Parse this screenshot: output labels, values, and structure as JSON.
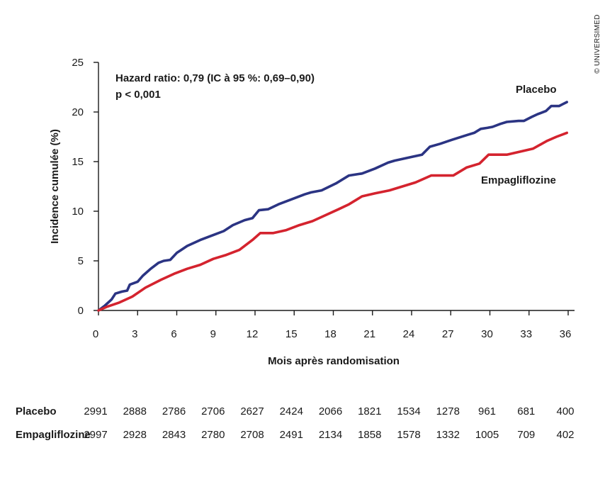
{
  "chart_data": {
    "type": "line",
    "xlabel": "Mois après randomisation",
    "ylabel": "Incidence cumulée (%)",
    "xlim": [
      0,
      36
    ],
    "ylim": [
      0,
      25
    ],
    "x_ticks": [
      0,
      3,
      6,
      9,
      12,
      15,
      18,
      21,
      24,
      27,
      30,
      33,
      36
    ],
    "y_ticks": [
      0,
      5,
      10,
      15,
      20,
      25
    ],
    "grid": false,
    "annotations": [
      "Hazard ratio: 0,79 (IC à 95 %: 0,69–0,90)",
      "p < 0,001"
    ],
    "series": [
      {
        "name": "Placebo",
        "color": "#2b3483",
        "points": [
          [
            0,
            0
          ],
          [
            0.5,
            0.5
          ],
          [
            1,
            1.1
          ],
          [
            1.3,
            1.7
          ],
          [
            1.8,
            1.9
          ],
          [
            2.2,
            2.0
          ],
          [
            2.4,
            2.6
          ],
          [
            3,
            2.9
          ],
          [
            3.4,
            3.5
          ],
          [
            4,
            4.2
          ],
          [
            4.6,
            4.8
          ],
          [
            5,
            5.0
          ],
          [
            5.5,
            5.1
          ],
          [
            6,
            5.8
          ],
          [
            6.8,
            6.5
          ],
          [
            7.8,
            7.1
          ],
          [
            8.8,
            7.6
          ],
          [
            9.6,
            8.0
          ],
          [
            10.3,
            8.6
          ],
          [
            11.2,
            9.1
          ],
          [
            11.8,
            9.3
          ],
          [
            12.3,
            10.1
          ],
          [
            13,
            10.2
          ],
          [
            13.8,
            10.7
          ],
          [
            14.8,
            11.2
          ],
          [
            15.8,
            11.7
          ],
          [
            16.3,
            11.9
          ],
          [
            17.1,
            12.1
          ],
          [
            18.2,
            12.8
          ],
          [
            19.2,
            13.6
          ],
          [
            20.2,
            13.8
          ],
          [
            21.2,
            14.3
          ],
          [
            22.2,
            14.9
          ],
          [
            22.7,
            15.1
          ],
          [
            24.1,
            15.5
          ],
          [
            24.8,
            15.7
          ],
          [
            25.4,
            16.5
          ],
          [
            26.2,
            16.8
          ],
          [
            27.1,
            17.2
          ],
          [
            28.3,
            17.7
          ],
          [
            28.8,
            17.9
          ],
          [
            29.3,
            18.3
          ],
          [
            29.8,
            18.4
          ],
          [
            30.2,
            18.5
          ],
          [
            30.8,
            18.8
          ],
          [
            31.3,
            19.0
          ],
          [
            32.2,
            19.1
          ],
          [
            32.6,
            19.1
          ],
          [
            33.2,
            19.5
          ],
          [
            33.7,
            19.8
          ],
          [
            34.3,
            20.1
          ],
          [
            34.7,
            20.6
          ],
          [
            35.3,
            20.6
          ],
          [
            35.6,
            20.8
          ],
          [
            35.9,
            21.0
          ]
        ]
      },
      {
        "name": "Empagliflozine",
        "color": "#d4232e",
        "points": [
          [
            0,
            0
          ],
          [
            0.7,
            0.4
          ],
          [
            1.6,
            0.8
          ],
          [
            2.6,
            1.4
          ],
          [
            3.6,
            2.3
          ],
          [
            4.8,
            3.1
          ],
          [
            5.8,
            3.7
          ],
          [
            6.8,
            4.2
          ],
          [
            7.8,
            4.6
          ],
          [
            8.8,
            5.2
          ],
          [
            9.8,
            5.6
          ],
          [
            10.8,
            6.1
          ],
          [
            11.8,
            7.1
          ],
          [
            12.4,
            7.8
          ],
          [
            13.4,
            7.8
          ],
          [
            14.4,
            8.1
          ],
          [
            15.4,
            8.6
          ],
          [
            16.4,
            9.0
          ],
          [
            17.4,
            9.6
          ],
          [
            18.4,
            10.2
          ],
          [
            19.2,
            10.7
          ],
          [
            20.2,
            11.5
          ],
          [
            21.2,
            11.8
          ],
          [
            22.3,
            12.1
          ],
          [
            23.3,
            12.5
          ],
          [
            24.3,
            12.9
          ],
          [
            25.5,
            13.6
          ],
          [
            26.4,
            13.6
          ],
          [
            27.2,
            13.6
          ],
          [
            28.2,
            14.4
          ],
          [
            29.2,
            14.8
          ],
          [
            29.9,
            15.7
          ],
          [
            30.4,
            15.7
          ],
          [
            31.3,
            15.7
          ],
          [
            32.3,
            16.0
          ],
          [
            33.3,
            16.3
          ],
          [
            34.4,
            17.1
          ],
          [
            35.1,
            17.5
          ],
          [
            35.9,
            17.9
          ]
        ]
      }
    ]
  },
  "risk_table": {
    "rows": [
      {
        "name": "Placebo",
        "values": [
          "2991",
          "2888",
          "2786",
          "2706",
          "2627",
          "2424",
          "2066",
          "1821",
          "1534",
          "1278",
          "961",
          "681",
          "400"
        ]
      },
      {
        "name": "Empagliflozine",
        "values": [
          "2997",
          "2928",
          "2843",
          "2780",
          "2708",
          "2491",
          "2134",
          "1858",
          "1578",
          "1332",
          "1005",
          "709",
          "402"
        ]
      }
    ]
  },
  "credit": "© UNIVERSIMED"
}
